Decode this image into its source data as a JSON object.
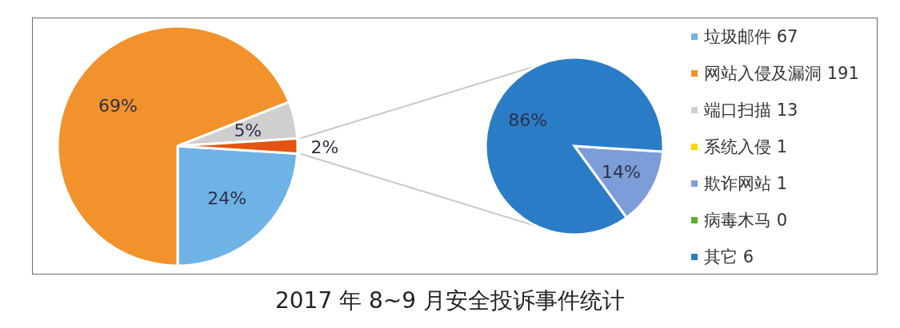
{
  "chart_data": [
    {
      "type": "pie",
      "title": "2017 年 8~9 月安全投诉事件统计",
      "categories": [
        "垃圾邮件 67",
        "网站入侵及漏洞 191",
        "端口扫描 13",
        null
      ],
      "values": [
        24,
        69,
        5,
        2
      ],
      "colors": [
        "#6fb3e6",
        "#f2922c",
        "#cfcfcf",
        "#e2540f"
      ],
      "value_labels": [
        "24%",
        "69%",
        "5%",
        "2%"
      ],
      "legend": "right"
    },
    {
      "type": "pie",
      "categories": [
        "系统入侵 1",
        "欺诈网站 1",
        "病毒木马 0",
        "其它 6"
      ],
      "values": [
        0,
        14,
        0,
        86
      ],
      "colors": [
        "#ffd400",
        "#7d9dd8",
        "#5cb032",
        "#2a7cc7"
      ],
      "value_labels": [
        null,
        "14%",
        null,
        "86%"
      ],
      "legend": "right"
    }
  ]
}
